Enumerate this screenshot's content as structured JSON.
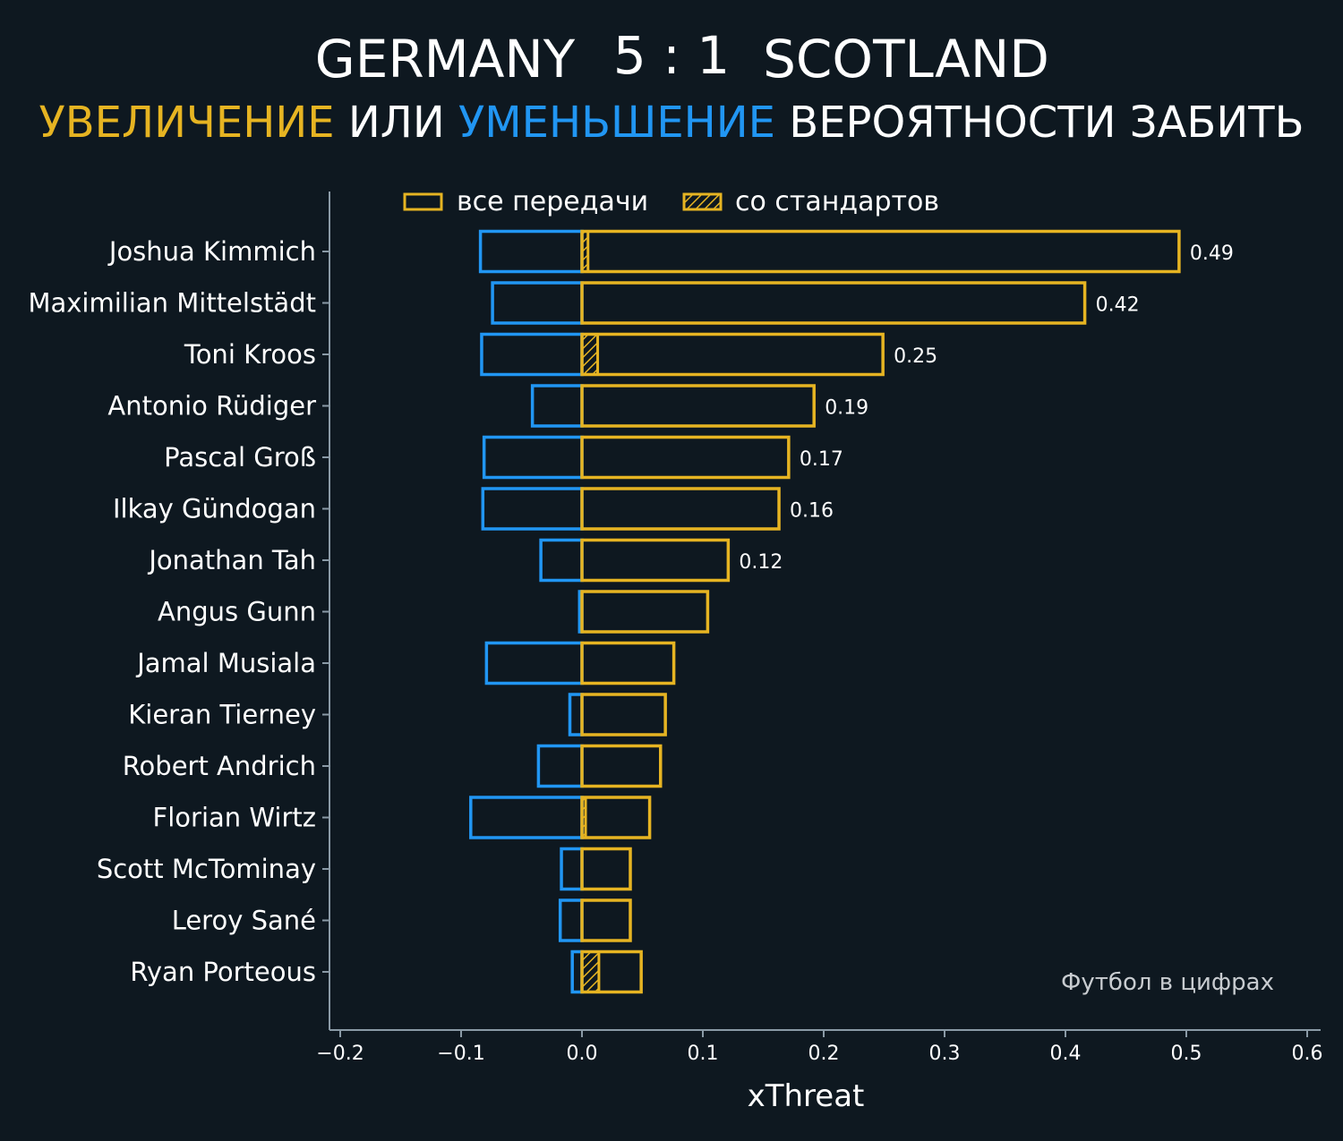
{
  "header": {
    "home_team": "GERMANY",
    "score": "5 : 1",
    "away_team": "SCOTLAND",
    "subtitle_increase": "УВЕЛИЧЕНИЕ",
    "subtitle_or": "ИЛИ",
    "subtitle_decrease": "УМЕНЬШЕНИЕ",
    "subtitle_rest": "ВЕРОЯТНОСТИ ЗАБИТЬ"
  },
  "legend": {
    "all_passes": "все передачи",
    "set_pieces": "со стандартов"
  },
  "credit": "Футбол в цифрах",
  "colors": {
    "background": "#0e1820",
    "increase": "#e6b422",
    "decrease": "#2196f3",
    "axis": "#8a9aa6",
    "text": "#ffffff"
  },
  "chart_data": {
    "type": "bar",
    "orientation": "horizontal",
    "title": "GERMANY 5 : 1 SCOTLAND",
    "subtitle": "УВЕЛИЧЕНИЕ ИЛИ УМЕНЬШЕНИЕ ВЕРОЯТНОСТИ ЗАБИТЬ",
    "xlabel": "xThreat",
    "ylabel": "",
    "xlim": [
      -0.2,
      0.6
    ],
    "xticks": [
      -0.2,
      -0.1,
      0.0,
      0.1,
      0.2,
      0.3,
      0.4,
      0.5,
      0.6
    ],
    "xtick_labels": [
      "−0.2",
      "−0.1",
      "0.0",
      "0.1",
      "0.2",
      "0.3",
      "0.4",
      "0.5",
      "0.6"
    ],
    "legend_position": "top",
    "categories": [
      "Joshua Kimmich",
      "Maximilian Mittelstädt",
      "Toni Kroos",
      "Antonio Rüdiger",
      "Pascal Groß",
      "Ilkay Gündogan",
      "Jonathan Tah",
      "Angus Gunn",
      "Jamal Musiala",
      "Kieran Tierney",
      "Robert Andrich",
      "Florian Wirtz",
      "Scott McTominay",
      "Leroy Sané",
      "Ryan Porteous"
    ],
    "series": [
      {
        "name": "increase (все передачи)",
        "values": [
          0.494,
          0.416,
          0.249,
          0.192,
          0.171,
          0.163,
          0.121,
          0.104,
          0.076,
          0.069,
          0.065,
          0.056,
          0.04,
          0.04,
          0.049
        ]
      },
      {
        "name": "increase (со стандартов)",
        "values": [
          0.005,
          0.0,
          0.013,
          0.0,
          0.0,
          0.0,
          0.0,
          0.0,
          0.0,
          0.0,
          0.0,
          0.003,
          0.0,
          0.0,
          0.014
        ]
      },
      {
        "name": "decrease (все передачи)",
        "values": [
          -0.084,
          -0.074,
          -0.083,
          -0.041,
          -0.081,
          -0.082,
          -0.034,
          -0.002,
          -0.079,
          -0.01,
          -0.036,
          -0.092,
          -0.017,
          -0.018,
          -0.008
        ]
      }
    ],
    "value_labels": [
      "0.49",
      "0.42",
      "0.25",
      "0.19",
      "0.17",
      "0.16",
      "0.12",
      "",
      "",
      "",
      "",
      "",
      "",
      "",
      ""
    ]
  }
}
